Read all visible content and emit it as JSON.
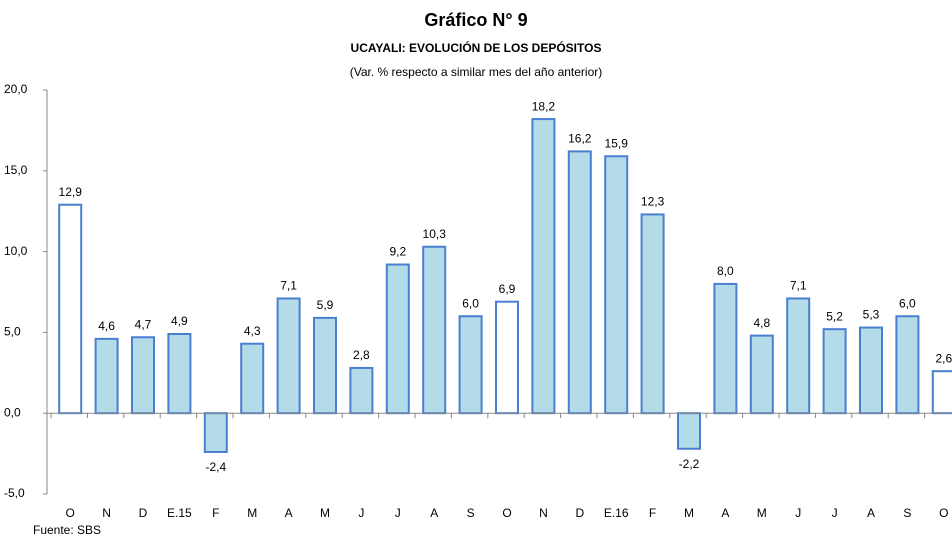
{
  "chart_data": {
    "type": "bar",
    "title": "Gráfico N° 9",
    "subtitle": "UCAYALI: EVOLUCIÓN DE LOS DEPÓSITOS",
    "note": "(Var. % respecto a similar mes del año anterior)",
    "source": "Fuente: SBS",
    "categories": [
      "O",
      "N",
      "D",
      "E.15",
      "F",
      "M",
      "A",
      "M",
      "J",
      "J",
      "A",
      "S",
      "O",
      "N",
      "D",
      "E.16",
      "F",
      "M",
      "A",
      "M",
      "J",
      "J",
      "A",
      "S",
      "O"
    ],
    "values": [
      12.9,
      4.6,
      4.7,
      4.9,
      -2.4,
      4.3,
      7.1,
      5.9,
      2.8,
      9.2,
      10.3,
      6.0,
      6.9,
      18.2,
      16.2,
      15.9,
      12.3,
      -2.2,
      8.0,
      4.8,
      7.1,
      5.2,
      5.3,
      6.0,
      2.6
    ],
    "value_labels": [
      "12,9",
      "4,6",
      "4,7",
      "4,9",
      "-2,4",
      "4,3",
      "7,1",
      "5,9",
      "2,8",
      "9,2",
      "10,3",
      "6,0",
      "6,9",
      "18,2",
      "16,2",
      "15,9",
      "12,3",
      "-2,2",
      "8,0",
      "4,8",
      "7,1",
      "5,2",
      "5,3",
      "6,0",
      "2,6"
    ],
    "colors": [
      "#ffffff",
      "#b4dbe8",
      "#b4dbe8",
      "#b4dbe8",
      "#b4dbe8",
      "#b4dbe8",
      "#b4dbe8",
      "#b4dbe8",
      "#b4dbe8",
      "#b4dbe8",
      "#b4dbe8",
      "#b4dbe8",
      "#ffffff",
      "#b4dbe8",
      "#b4dbe8",
      "#b4dbe8",
      "#b4dbe8",
      "#b4dbe8",
      "#b4dbe8",
      "#b4dbe8",
      "#b4dbe8",
      "#b4dbe8",
      "#b4dbe8",
      "#b4dbe8",
      "#ffffff"
    ],
    "edge_color": "#4a7fd0",
    "ylim": [
      -5,
      20
    ],
    "yticks": [
      {
        "value": -5,
        "label": "-5,0"
      },
      {
        "value": 0,
        "label": "0,0"
      },
      {
        "value": 5,
        "label": "5,0"
      },
      {
        "value": 10,
        "label": "10,0"
      },
      {
        "value": 15,
        "label": "15,0"
      },
      {
        "value": 20,
        "label": "20,0"
      }
    ],
    "grid": false
  }
}
